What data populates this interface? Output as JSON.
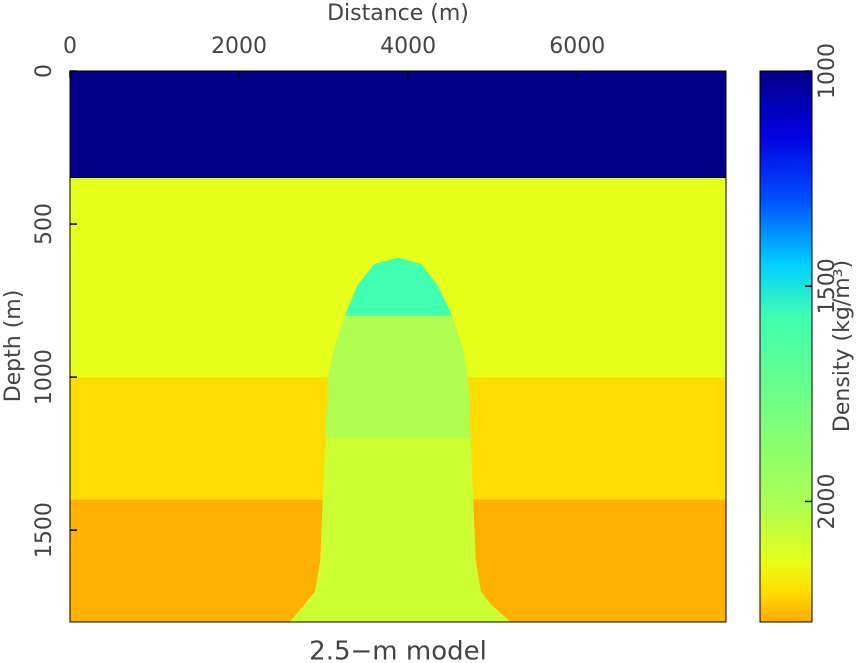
{
  "chart_data": {
    "type": "model",
    "title": "2.5−m model",
    "x_label": "Distance (m)",
    "y_label": "Depth (m)",
    "xlim": [
      0,
      7760
    ],
    "xticks": [
      0,
      2000,
      4000,
      6000
    ],
    "ylim": [
      0,
      1800
    ],
    "yticks": [
      0,
      500,
      1000,
      1500
    ],
    "layers": [
      {
        "top": 0,
        "bottom": 350,
        "value": 1000
      },
      {
        "top": 350,
        "bottom": 1000,
        "value": 2140
      },
      {
        "top": 1000,
        "bottom": 1400,
        "value": 2210
      },
      {
        "top": 1400,
        "bottom": 1800,
        "value": 2270
      }
    ],
    "body": {
      "outline_x": [
        2600,
        2780,
        2900,
        2960,
        2990,
        3050,
        3130,
        3250,
        3400,
        3600,
        3880,
        4150,
        4350,
        4520,
        4640,
        4710,
        4770,
        4800,
        4860,
        4970,
        5210
      ],
      "outline_depth": [
        1800,
        1740,
        1700,
        1600,
        1400,
        1000,
        900,
        800,
        700,
        630,
        610,
        630,
        700,
        800,
        900,
        1000,
        1400,
        1600,
        1700,
        1740,
        1800
      ],
      "zones": [
        {
          "top": 600,
          "bottom": 800,
          "value": 1570
        },
        {
          "top": 800,
          "bottom": 1200,
          "value": 2020
        },
        {
          "top": 1200,
          "bottom": 1800,
          "value": 2080
        }
      ]
    },
    "colorbar": {
      "label": "Density (kg/m³)",
      "lim": [
        1000,
        2280
      ],
      "ticks": [
        1000,
        1500,
        2000
      ],
      "stops": [
        {
          "value": 1000,
          "color": "#000088"
        },
        {
          "value": 1150,
          "color": "#0000e0"
        },
        {
          "value": 1300,
          "color": "#0050ff"
        },
        {
          "value": 1450,
          "color": "#00d0ff"
        },
        {
          "value": 1570,
          "color": "#40ffb0"
        },
        {
          "value": 2020,
          "color": "#b0ff50"
        },
        {
          "value": 2080,
          "color": "#ccff33"
        },
        {
          "value": 2140,
          "color": "#e6ff1a"
        },
        {
          "value": 2210,
          "color": "#ffdd00"
        },
        {
          "value": 2280,
          "color": "#ffaa00"
        }
      ]
    }
  }
}
